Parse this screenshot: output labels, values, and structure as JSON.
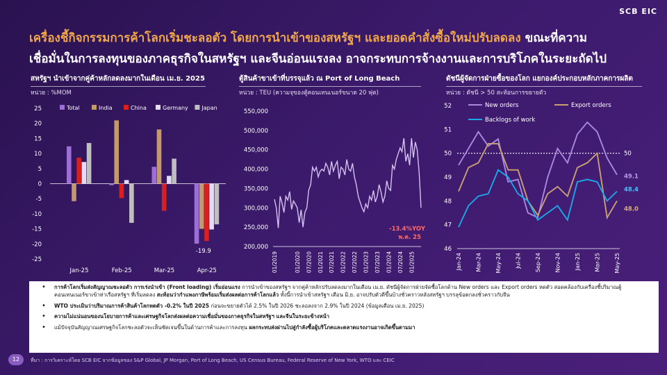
{
  "logo": "SCB EIC",
  "headline": {
    "line1_accent": "เครื่องชี้กิจกรรมการค้าโลกเริ่มชะลอตัว โดยการนำเข้าของสหรัฐฯ และยอดคำสั่งซื้อใหม่ปรับลดลง",
    "line1_white": " ขณะที่ความ",
    "line2_white": "เชื่อมั่นในการลงทุนของภาคธุรกิจในสหรัฐฯ และจีนอ่อนแรงลง อาจกระทบการจ้างงานและการบริโภคในระยะถัดไป"
  },
  "panels": [
    {
      "title": "สหรัฐฯ นำเข้าจากคู่ค้าหลักลดลงมากในเดือน เม.ย. 2025",
      "unit": "หน่วย : %MOM"
    },
    {
      "title": "ตู้สินค้าขาเข้าที่บรรจุแล้ว ณ Port of Long Beach",
      "unit": "หน่วย : TEU (ความจุของตู้คอนเทนเนอร์ขนาด 20 ฟุต)"
    },
    {
      "title": "ดัชนีผู้จัดการฝ่ายซื้อของโลก แยกองค์ประกอบหลักภาคการผลิต",
      "unit": "หน่วย : ดัชนี > 50 สะท้อนการขยายตัว"
    }
  ],
  "colors": {
    "total": "#9b6fd6",
    "india": "#c49a6c",
    "china": "#d9201f",
    "germany": "#e3dcf2",
    "japan": "#bfbfbf",
    "port": "#d4c2f0",
    "new_orders": "#a988e0",
    "export_orders": "#c9a073",
    "backlogs": "#19a8e8",
    "annot_red": "#ff6b6b",
    "annot_purple": "#b89ae6",
    "annot_blue": "#3fc3ff",
    "annot_tan": "#d7ad7b"
  },
  "chart_data": [
    {
      "type": "bar",
      "categories": [
        "Jan-25",
        "Feb-25",
        "Mar-25",
        "Apr-25"
      ],
      "series": [
        {
          "name": "Total",
          "values": [
            12.4,
            -0.5,
            5.6,
            -19.9
          ]
        },
        {
          "name": "India",
          "values": [
            -5.8,
            21.0,
            18.0,
            -15.0
          ]
        },
        {
          "name": "China",
          "values": [
            8.6,
            -4.8,
            -9.0,
            -19.0
          ]
        },
        {
          "name": "Germany",
          "values": [
            7.2,
            1.2,
            2.6,
            -15.2
          ]
        },
        {
          "name": "Japan",
          "values": [
            13.5,
            -13.0,
            8.3,
            -13.5
          ]
        }
      ],
      "yticks": [
        25,
        20,
        15,
        10,
        5,
        0,
        -5,
        -10,
        -15,
        -20,
        -25
      ],
      "ylim": [
        -25,
        25
      ],
      "annotation": "-19.9",
      "legend": "top"
    },
    {
      "type": "line",
      "xticks": [
        "01/2019",
        "01/2020",
        "07/2020",
        "01/2021",
        "07/2021",
        "01/2022",
        "07/2022",
        "01/2023",
        "07/2023",
        "01/2024",
        "07/2024",
        "01/2025"
      ],
      "xtick_months": [
        0,
        12,
        18,
        24,
        30,
        36,
        42,
        48,
        54,
        60,
        66,
        72
      ],
      "yticks": [
        "550,000",
        "500,000",
        "450,000",
        "400,000",
        "350,000",
        "300,000",
        "250,000",
        "200,000"
      ],
      "ylim": [
        200000,
        550000
      ],
      "values": [
        322000,
        300000,
        248000,
        330000,
        312000,
        288000,
        330000,
        320000,
        342000,
        296000,
        318000,
        310000,
        300000,
        262000,
        295000,
        250000,
        288000,
        300000,
        345000,
        360000,
        405000,
        395000,
        405000,
        380000,
        395000,
        400000,
        395000,
        415000,
        405000,
        385000,
        420000,
        395000,
        410000,
        420000,
        375000,
        405000,
        400000,
        385000,
        425000,
        400000,
        395000,
        415000,
        380000,
        360000,
        330000,
        315000,
        300000,
        290000,
        310000,
        300000,
        330000,
        320000,
        345000,
        315000,
        330000,
        360000,
        340000,
        315000,
        330000,
        370000,
        350000,
        345000,
        410000,
        400000,
        425000,
        440000,
        455000,
        445000,
        480000,
        420000,
        440000,
        410000,
        480000,
        430000,
        470000,
        450000,
        390000,
        300000
      ],
      "annotation_line1": "-13.4%YOY",
      "annotation_line2": "พ.ค. 25"
    },
    {
      "type": "line",
      "categories": [
        "Jan-24",
        "Feb-24",
        "Mar-24",
        "Apr-24",
        "May-24",
        "Jun-24",
        "Jul-24",
        "Aug-24",
        "Sep-24",
        "Oct-24",
        "Nov-24",
        "Dec-24",
        "Jan-25",
        "Feb-25",
        "Mar-25",
        "Apr-25",
        "May-25"
      ],
      "xtick_labels": [
        "Jan-24",
        "Mar-24",
        "May-24",
        "Jul-24",
        "Sep-24",
        "Nov-24",
        "Jan-25",
        "Mar-25",
        "May-25"
      ],
      "yticks": [
        52,
        51,
        50,
        49,
        48,
        47,
        46
      ],
      "ylim": [
        46,
        52
      ],
      "threshold": 50,
      "threshold_label": "50",
      "series": [
        {
          "name": "New orders",
          "values": [
            49.5,
            50.2,
            50.9,
            50.3,
            50.6,
            48.8,
            48.9,
            47.5,
            47.3,
            49.0,
            50.2,
            49.6,
            50.8,
            51.3,
            50.9,
            49.8,
            49.1
          ]
        },
        {
          "name": "Export orders",
          "values": [
            48.4,
            49.4,
            49.6,
            50.4,
            50.4,
            49.3,
            49.3,
            48.0,
            47.4,
            48.3,
            48.6,
            48.2,
            49.4,
            49.6,
            50.0,
            47.3,
            48.0
          ]
        },
        {
          "name": "Backlogs of work",
          "values": [
            46.9,
            47.8,
            48.2,
            48.3,
            49.3,
            49.0,
            48.3,
            48.0,
            47.2,
            47.5,
            47.8,
            47.2,
            48.8,
            48.9,
            48.8,
            48.0,
            48.4
          ]
        }
      ],
      "end_labels": [
        "49.1",
        "48.0",
        "48.4"
      ]
    }
  ],
  "notes": [
    {
      "bold": "การค้าโลกเริ่มส่งสัญญาณชะลอตัว การเร่งนำเข้า (Front loading) เริ่มอ่อนแรง",
      "text": " การนำเข้าของสหรัฐฯ จากคู่ค้าหลักปรับลดลงมากในเดือน เม.ย. ดัชนีผู้จัดการฝ่ายจัดซื้อโลกด้าน New orders และ Export orders หดตัว สอดคล้องกับเครื่องชี้ปริมาณตู้คอนเทนเนอร์ขาเข้าท่าเรือสหรัฐฯ ที่เริ่มลดลง ",
      "bold2": "สะท้อนว่ากำแพงภาษีพร้อมเริ่มส่งผลต่อการค้าโลกแล้ว",
      "text2": " ทั้งนี้การนำเข้าสหรัฐฯ เดือน มิ.ย. อาจปรับตัวดีขึ้นบ้างชั่วคราวหลังสหรัฐฯ บรรลุข้อตกลงชั่วคราวกับจีน"
    },
    {
      "bold": "WTO ประเมินว่าปริมาณการค้าสินค้าโลกหดตัว -0.2% ในปี 2025",
      "text": " ก่อนจะขยายตัวได้ 2.5% ในปี 2026 ชะลอลงจาก 2.9% ในปี 2024 (ข้อมูลเดือน เม.ย. 2025)",
      "bold2": "",
      "text2": ""
    },
    {
      "bold": "ความไม่แน่นอนของนโยบายการค้าและเศรษฐกิจโลกส่งผลต่อความเชื่อมั่นของภาคธุรกิจในสหรัฐฯ และจีนในระยะข้างหน้า",
      "text": "",
      "bold2": "",
      "text2": ""
    },
    {
      "bold": "",
      "text": "แม้ปัจจุบันสัญญาณเศรษฐกิจโลกชะลอตัวจะเห็นชัดเจนขึ้นในด้านการค้าและการลงทุน ",
      "bold2": "ผลกระทบส่งผ่านไปสู่กำลังซื้อผู้บริโภคและตลาดแรงงานอาจเกิดขึ้นตามมา",
      "text2": ""
    }
  ],
  "page_number": "12",
  "source": "ที่มา : การวิเคราะห์โดย SCB EIC จากข้อมูลของ S&P Global, JP Morgan, Port of Long Beach, US Census Bureau, Federal Reserve of New York, WTO และ CEIC"
}
